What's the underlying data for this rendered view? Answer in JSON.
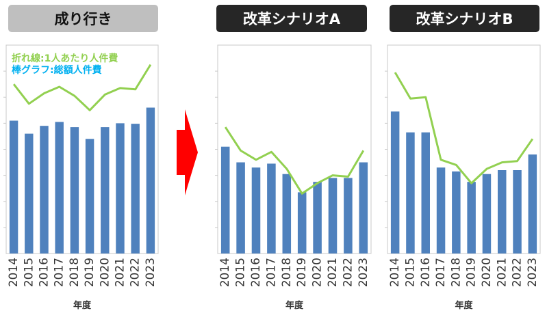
{
  "panel_titles": [
    "成り行き",
    "改革シナリオA",
    "改革シナリオB"
  ],
  "legend": {
    "line_label": "折れ線:1人あたり人件費",
    "bar_label": "棒グラフ:総額人件費"
  },
  "colors": {
    "bar": "#4f81bd",
    "line": "#92d050",
    "legend_bar_text": "#00b0f0",
    "arrow": "#ff0000",
    "title_gray": "#bfbfbf",
    "title_dark": "#262626"
  },
  "chart_data": [
    {
      "type": "bar",
      "title": "成り行き",
      "xlabel": "年度",
      "ylabel": "",
      "categories": [
        "2014",
        "2015",
        "2016",
        "2017",
        "2018",
        "2019",
        "2020",
        "2021",
        "2022",
        "2023"
      ],
      "ylim": [
        0,
        8
      ],
      "grid": false,
      "series": [
        {
          "name": "棒グラフ:総額人件費",
          "type": "bar",
          "values": [
            5.1,
            4.6,
            4.9,
            5.05,
            4.85,
            4.4,
            4.85,
            5.0,
            4.98,
            5.6
          ]
        },
        {
          "name": "折れ線:1人あたり人件費",
          "type": "line",
          "values": [
            6.5,
            5.75,
            6.15,
            6.4,
            6.05,
            5.5,
            6.1,
            6.35,
            6.3,
            7.25
          ]
        }
      ]
    },
    {
      "type": "bar",
      "title": "改革シナリオA",
      "xlabel": "年度",
      "ylabel": "",
      "categories": [
        "2014",
        "2015",
        "2016",
        "2017",
        "2018",
        "2019",
        "2020",
        "2021",
        "2022",
        "2023"
      ],
      "ylim": [
        0,
        8
      ],
      "grid": false,
      "series": [
        {
          "name": "棒グラフ:総額人件費",
          "type": "bar",
          "values": [
            4.1,
            3.5,
            3.3,
            3.45,
            3.05,
            2.35,
            2.75,
            2.9,
            2.9,
            3.5
          ]
        },
        {
          "name": "折れ線:1人あたり人件費",
          "type": "line",
          "values": [
            4.85,
            3.95,
            3.6,
            3.9,
            3.25,
            2.3,
            2.7,
            3.0,
            2.95,
            3.95
          ]
        }
      ]
    },
    {
      "type": "bar",
      "title": "改革シナリオB",
      "xlabel": "年度",
      "ylabel": "",
      "categories": [
        "2014",
        "2015",
        "2016",
        "2017",
        "2018",
        "2019",
        "2020",
        "2021",
        "2022",
        "2023"
      ],
      "ylim": [
        0,
        8
      ],
      "grid": false,
      "series": [
        {
          "name": "棒グラフ:総額人件費",
          "type": "bar",
          "values": [
            5.45,
            4.65,
            4.65,
            3.3,
            3.15,
            2.75,
            3.05,
            3.2,
            3.2,
            3.8
          ]
        },
        {
          "name": "折れ線:1人あたり人件費",
          "type": "line",
          "values": [
            6.95,
            5.95,
            6.0,
            3.6,
            3.4,
            2.7,
            3.25,
            3.5,
            3.55,
            4.4
          ]
        }
      ]
    }
  ]
}
